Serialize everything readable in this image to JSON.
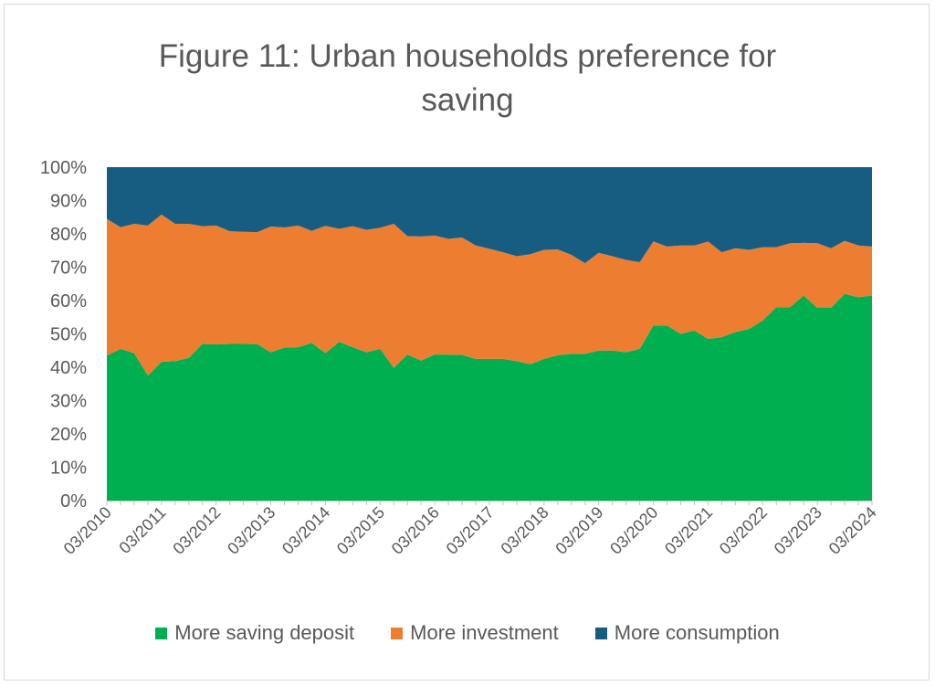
{
  "colors": {
    "deposit": "#00b050",
    "investment": "#ed7d31",
    "consumption": "#175d82",
    "axis_text": "#595959",
    "axis_line": "#bfbfbf"
  },
  "chart_data": {
    "type": "area",
    "stacked": true,
    "normalized": true,
    "title": "Figure 11: Urban households preference for saving",
    "title_lines": [
      "Figure 11: Urban households preference for",
      "saving"
    ],
    "xlabel": "",
    "ylabel": "",
    "ylim": [
      0,
      100
    ],
    "y_ticks": [
      "0%",
      "10%",
      "20%",
      "30%",
      "40%",
      "50%",
      "60%",
      "70%",
      "80%",
      "90%",
      "100%"
    ],
    "x_tick_labels": [
      "03/2010",
      "03/2011",
      "03/2012",
      "03/2013",
      "03/2014",
      "03/2015",
      "03/2016",
      "03/2017",
      "03/2018",
      "03/2019",
      "03/2020",
      "03/2021",
      "03/2022",
      "03/2023",
      "03/2024"
    ],
    "grid": false,
    "legend_position": "bottom",
    "x_frequency": "quarterly",
    "x_start": "03/2010",
    "x_end": "03/2024",
    "series": [
      {
        "name": "More saving deposit",
        "values": [
          43.5,
          45.5,
          44.2,
          37.5,
          41.6,
          41.8,
          42.8,
          47.0,
          46.8,
          47.0,
          47.0,
          46.9,
          44.5,
          45.9,
          46.0,
          47.3,
          44.2,
          47.6,
          46.0,
          44.5,
          45.5,
          39.8,
          43.8,
          42.0,
          43.8,
          43.8,
          43.7,
          42.5,
          42.5,
          42.5,
          41.8,
          40.9,
          42.5,
          43.6,
          44.0,
          44.0,
          45.0,
          45.0,
          44.5,
          45.5,
          52.5,
          52.5,
          50.0,
          51.0,
          48.5,
          49.0,
          50.5,
          51.5,
          54.0,
          58.0,
          58.0,
          61.5,
          57.8,
          57.8,
          62.0,
          61.0,
          61.5
        ]
      },
      {
        "name": "More investment",
        "values": [
          41.0,
          36.5,
          38.8,
          45.0,
          44.2,
          41.2,
          40.2,
          35.3,
          35.7,
          33.8,
          33.6,
          33.6,
          37.7,
          36.0,
          36.5,
          33.6,
          38.2,
          33.9,
          36.3,
          36.7,
          36.3,
          43.2,
          35.5,
          37.2,
          35.7,
          34.7,
          35.2,
          34.0,
          33.0,
          32.0,
          31.5,
          33.0,
          32.7,
          31.7,
          29.7,
          27.2,
          29.3,
          28.3,
          27.7,
          26.0,
          25.2,
          23.7,
          26.5,
          25.5,
          29.2,
          25.5,
          25.2,
          23.7,
          22.0,
          18.0,
          19.2,
          15.8,
          19.4,
          17.9,
          15.9,
          15.5,
          14.7
        ]
      },
      {
        "name": "More consumption",
        "values": [
          15.5,
          18.0,
          17.0,
          17.5,
          14.2,
          17.0,
          17.0,
          17.7,
          17.5,
          19.2,
          19.4,
          19.5,
          17.8,
          18.1,
          17.5,
          19.1,
          17.6,
          18.5,
          17.7,
          18.8,
          18.2,
          17.0,
          20.7,
          20.8,
          20.5,
          21.5,
          21.1,
          23.5,
          24.5,
          25.5,
          26.7,
          26.1,
          24.8,
          24.7,
          26.3,
          28.8,
          25.7,
          26.7,
          27.8,
          28.5,
          22.3,
          23.8,
          23.5,
          23.5,
          22.3,
          25.5,
          24.3,
          24.8,
          24.0,
          24.0,
          22.8,
          22.7,
          22.8,
          24.3,
          22.1,
          23.5,
          23.8
        ]
      }
    ]
  }
}
